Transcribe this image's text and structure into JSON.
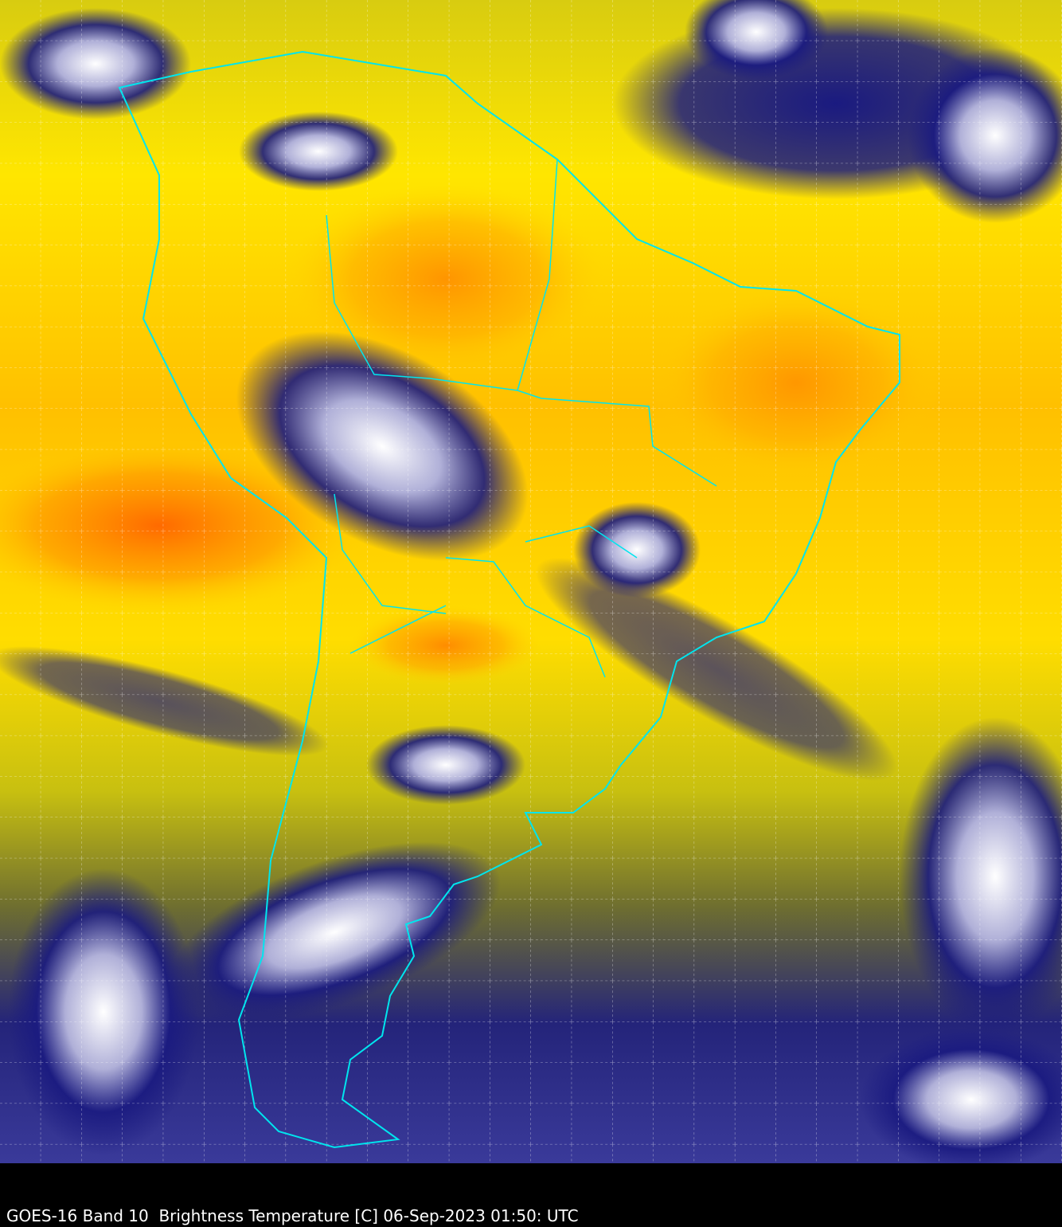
{
  "caption": "GOES-16 Band 10  Brightness Temperature [C] 06-Sep-2023 01:50: UTC",
  "colors": {
    "warm": "#ff8c00",
    "mid": "#ffee00",
    "moist": "#8a8a20",
    "cold": "#1a1a7a",
    "coldest": "#ffffff",
    "very_cold": "#3c8a5a",
    "borders": "#00e5ee",
    "grid": "#ffffff"
  }
}
